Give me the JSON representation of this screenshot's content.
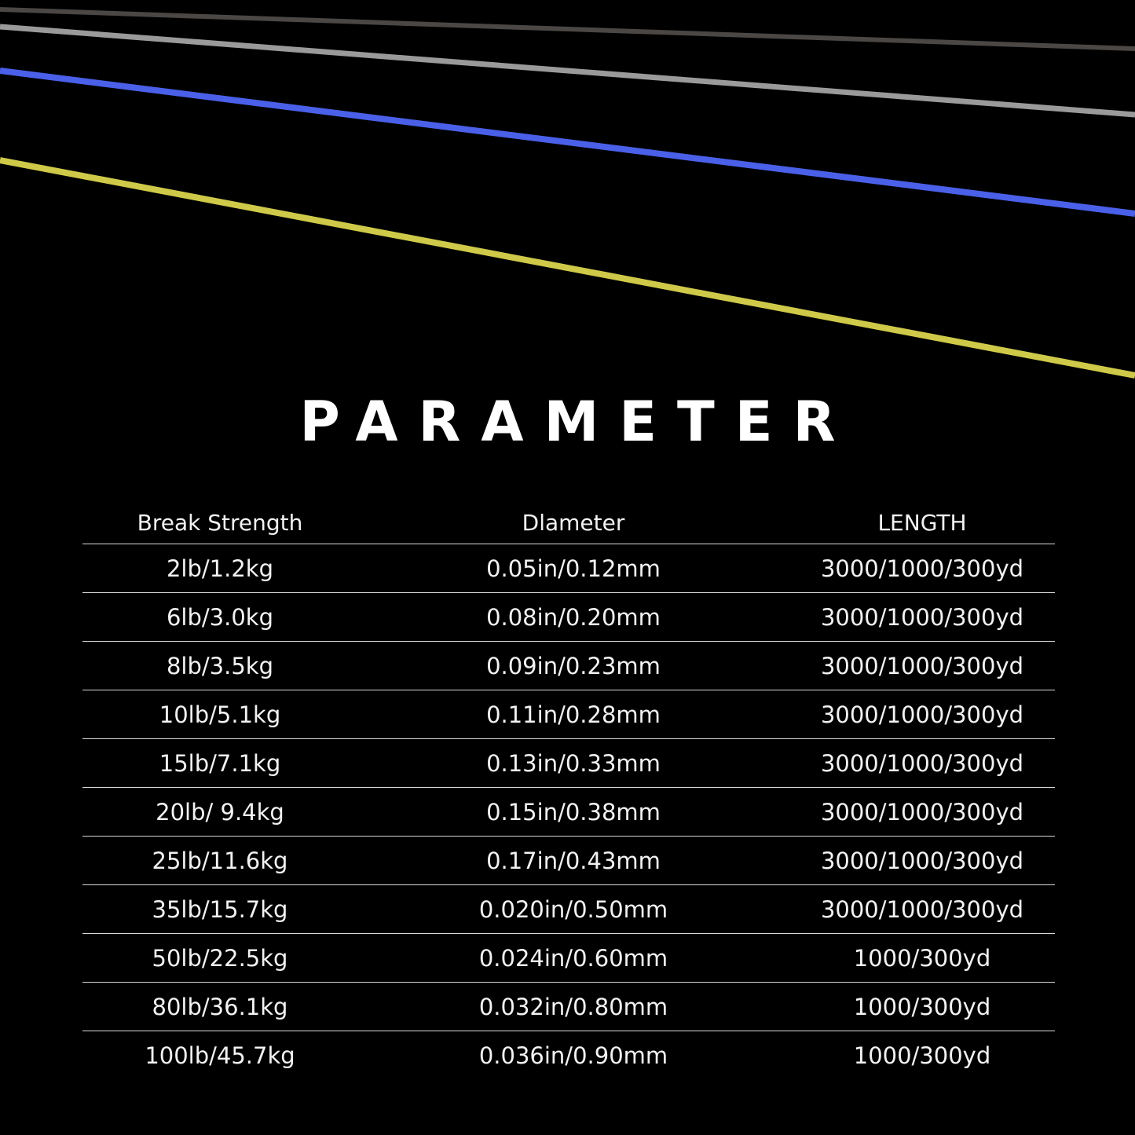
{
  "title": "PARAMETER",
  "line_colors": {
    "dark_gray": "#4a4744",
    "gray": "#9a9a9a",
    "blue": "#4a60e8",
    "yellow": "#cfc94a"
  },
  "table": {
    "headers": [
      "Break Strength",
      "Dlameter",
      "LENGTH"
    ],
    "rows": [
      [
        "2lb/1.2kg",
        "0.05in/0.12mm",
        "3000/1000/300yd"
      ],
      [
        "6lb/3.0kg",
        "0.08in/0.20mm",
        "3000/1000/300yd"
      ],
      [
        "8lb/3.5kg",
        "0.09in/0.23mm",
        "3000/1000/300yd"
      ],
      [
        "10lb/5.1kg",
        "0.11in/0.28mm",
        "3000/1000/300yd"
      ],
      [
        "15lb/7.1kg",
        "0.13in/0.33mm",
        "3000/1000/300yd"
      ],
      [
        "20lb/ 9.4kg",
        "0.15in/0.38mm",
        "3000/1000/300yd"
      ],
      [
        "25lb/11.6kg",
        "0.17in/0.43mm",
        "3000/1000/300yd"
      ],
      [
        "35lb/15.7kg",
        "0.020in/0.50mm",
        "3000/1000/300yd"
      ],
      [
        "50lb/22.5kg",
        "0.024in/0.60mm",
        "1000/300yd"
      ],
      [
        "80lb/36.1kg",
        "0.032in/0.80mm",
        "1000/300yd"
      ],
      [
        "100lb/45.7kg",
        "0.036in/0.90mm",
        "1000/300yd"
      ]
    ]
  }
}
